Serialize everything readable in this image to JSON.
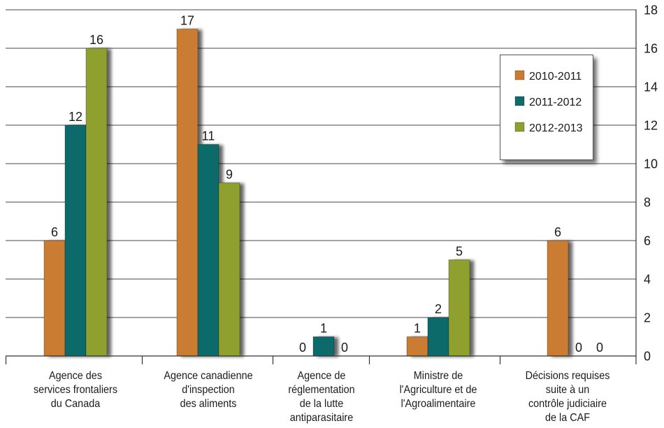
{
  "chart_data": {
    "type": "bar",
    "categories": [
      "Agence des\nservices frontaliers\ndu Canada",
      "Agence canadienne\nd'inspection\ndes aliments",
      "Agence de\nréglementation\nde la lutte\nantiparasitaire",
      "Ministre de\nl'Agriculture et de\nl'Agroalimentaire",
      "Décisions requises\nsuite à un\ncontrôle judiciaire\nde la CAF"
    ],
    "series": [
      {
        "name": "2010-2011",
        "color": "#C97C30",
        "values": [
          6,
          17,
          0,
          1,
          6
        ]
      },
      {
        "name": "2011-2012",
        "color": "#0F6A6A",
        "values": [
          12,
          11,
          1,
          2,
          0
        ]
      },
      {
        "name": "2012-2013",
        "color": "#8FA02F",
        "values": [
          16,
          9,
          0,
          5,
          0
        ]
      }
    ],
    "ylim": [
      0,
      18
    ],
    "yticks": [
      0,
      2,
      4,
      6,
      8,
      10,
      12,
      14,
      16,
      18
    ],
    "y_axis_side": "right",
    "grid": true,
    "legend_position": "top-right",
    "data_labels": true
  }
}
